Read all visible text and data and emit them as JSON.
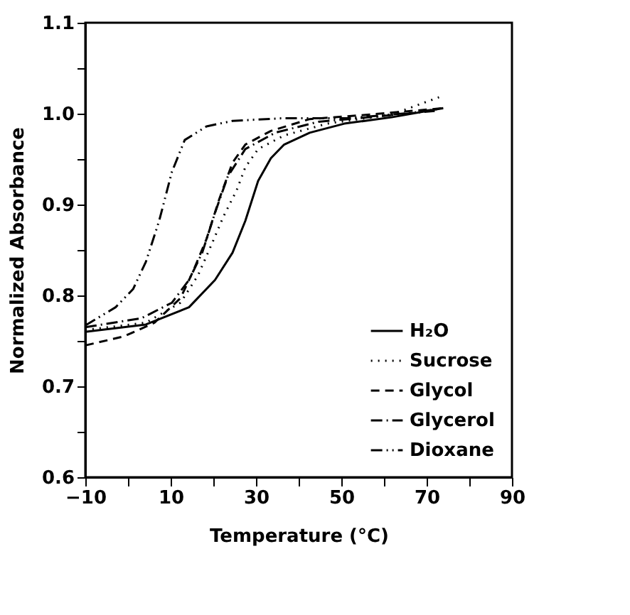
{
  "chart_data": {
    "type": "line",
    "xlabel": "Temperature (°C)",
    "ylabel": "Normalized Absorbance",
    "xlim": [
      -10,
      90
    ],
    "ylim": [
      0.6,
      1.1
    ],
    "xticks": [
      -10,
      {
        "value": 0,
        "label": null
      },
      10,
      {
        "value": 20,
        "label": null
      },
      30,
      {
        "value": 40,
        "label": null
      },
      50,
      {
        "value": 60,
        "label": null
      },
      70,
      {
        "value": 80,
        "label": null
      },
      90
    ],
    "yticks": [
      0.6,
      {
        "value": 0.65,
        "label": null
      },
      0.7,
      {
        "value": 0.75,
        "label": null
      },
      0.8,
      {
        "value": 0.85,
        "label": null
      },
      0.9,
      {
        "value": 0.95,
        "label": null
      },
      {
        "value": 1.0,
        "label": "1.0"
      },
      {
        "value": 1.05,
        "label": null
      },
      1.1
    ],
    "grid": false,
    "legend": "bottom right",
    "marker": "none",
    "series": [
      {
        "name": "H₂O",
        "color": "#000000",
        "line_style": "solid",
        "x": [
          -10,
          4.2,
          14.3,
          20.4,
          24.5,
          27.5,
          30.5,
          33.5,
          36.6,
          42.6,
          50.7,
          61.8,
          73.9
        ],
        "values": [
          0.76,
          0.768,
          0.787,
          0.817,
          0.847,
          0.882,
          0.926,
          0.951,
          0.966,
          0.979,
          0.989,
          0.996,
          1.006
        ]
      },
      {
        "name": "Sucrose",
        "color": "#000000",
        "line_style": "dotted",
        "x": [
          -10,
          4.2,
          12.3,
          16.4,
          19.4,
          22.4,
          25.5,
          27.5,
          30.5,
          36.6,
          46.7,
          61.8,
          72.9
        ],
        "values": [
          0.762,
          0.77,
          0.792,
          0.822,
          0.854,
          0.887,
          0.916,
          0.941,
          0.961,
          0.976,
          0.989,
          0.999,
          1.018
        ]
      },
      {
        "name": "Glycol",
        "color": "#000000",
        "line_style": "dashed",
        "x": [
          -10,
          -0.9,
          6.2,
          12.3,
          15.3,
          18.4,
          21.4,
          24.5,
          27.5,
          33.5,
          42.6,
          56.8,
          73.9
        ],
        "values": [
          0.745,
          0.755,
          0.77,
          0.797,
          0.827,
          0.862,
          0.906,
          0.946,
          0.966,
          0.981,
          0.994,
          0.999,
          1.006
        ]
      },
      {
        "name": "Glycerol",
        "color": "#000000",
        "line_style": "dashdot",
        "x": [
          -10,
          3.2,
          10.3,
          14.3,
          17.4,
          20.4,
          23.4,
          27.5,
          34.5,
          44.6,
          58.8,
          71.9
        ],
        "values": [
          0.765,
          0.775,
          0.792,
          0.817,
          0.847,
          0.891,
          0.931,
          0.961,
          0.979,
          0.991,
          0.997,
          1.003
        ]
      },
      {
        "name": "Dioxane",
        "color": "#000000",
        "line_style": "dashdotdot",
        "x": [
          -10,
          -2.9,
          1.2,
          4.2,
          7.3,
          10.3,
          13.3,
          18.4,
          24.5,
          36.6,
          51.7,
          66.8,
          73.9
        ],
        "values": [
          0.767,
          0.787,
          0.807,
          0.837,
          0.882,
          0.936,
          0.971,
          0.986,
          0.992,
          0.995,
          0.995,
          1.001,
          1.006
        ]
      }
    ]
  }
}
